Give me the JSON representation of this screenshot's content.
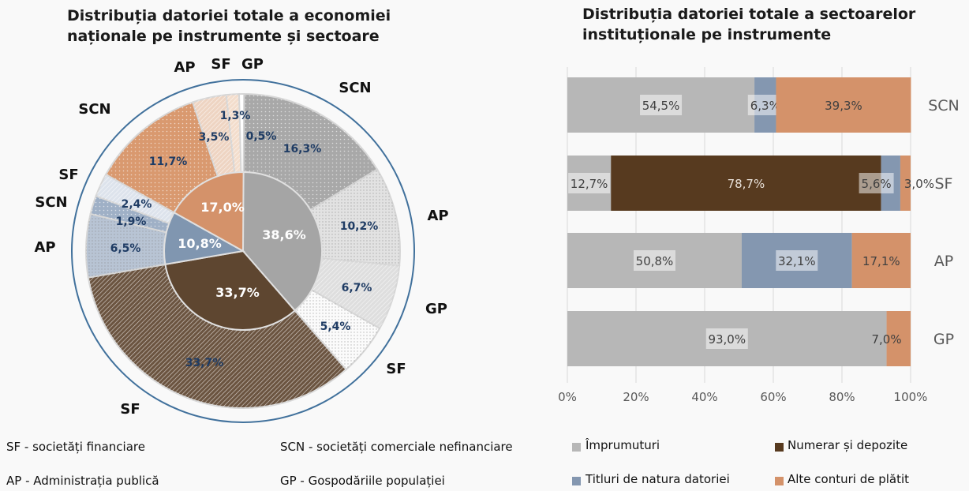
{
  "left_chart": {
    "title_line1": "Distribuția datoriei totale a economiei",
    "title_line2": "naționale  pe instrumente și sectoare"
  },
  "right_chart": {
    "title_line1": "Distribuția datoriei totale a sectoarelor",
    "title_line2": "instituționale pe instrumente"
  },
  "legend_left": [
    "SF - societăți financiare",
    "SCN - societăți comerciale nefinanciare",
    "AP - Administrația publică",
    "GP - Gospodăriile populației"
  ],
  "legend_right": [
    {
      "label": "Împrumuturi",
      "color": "#b7b7b7"
    },
    {
      "label": "Numerar și depozite",
      "color": "#573a1f"
    },
    {
      "label": "Titluri de natura datoriei",
      "color": "#8497b0"
    },
    {
      "label": "Alte conturi de plătit",
      "color": "#d4926a"
    }
  ],
  "chart_data": [
    {
      "type": "pie",
      "title": "Distribuția datoriei totale a economiei naționale  pe instrumente și sectoare",
      "inner": {
        "labels": [
          "Împrumuturi",
          "Numerar și depozite",
          "Titluri de natura datoriei",
          "Alte conturi de plătit"
        ],
        "values": [
          38.6,
          33.7,
          10.8,
          17.0
        ],
        "value_labels": [
          "38,6%",
          "33,7%",
          "10,8%",
          "17,0%"
        ],
        "colors": [
          "#a5a5a5",
          "#5e4630",
          "#8096b0",
          "#d4926a"
        ]
      },
      "outer": {
        "sectors": [
          "SCN",
          "AP",
          "GP",
          "SF",
          "SF",
          "AP",
          "SCN",
          "SF",
          "SCN",
          "AP",
          "SF",
          "GP"
        ],
        "values": [
          16.3,
          10.2,
          6.7,
          5.4,
          33.7,
          6.5,
          1.9,
          2.4,
          11.7,
          3.5,
          1.3,
          0.5
        ],
        "value_labels": [
          "16,3%",
          "10,2%",
          "6,7%",
          "5,4%",
          "33,7%",
          "6,5%",
          "1,9%",
          "2,4%",
          "11,7%",
          "3,5%",
          "1,3%",
          "0,5%"
        ],
        "colors": [
          "#a8a8a8",
          "#e2e2e2",
          "#dedede",
          "#fbfbfb",
          "#6b5440",
          "#b8c4d4",
          "#9fb0c6",
          "#dde3ec",
          "#d9996f",
          "#eed4c2",
          "#f3ddcc",
          "#ffffff"
        ]
      }
    },
    {
      "type": "bar",
      "stacked": true,
      "orientation": "horizontal",
      "title": "Distribuția datoriei totale a sectoarelor instituționale pe instrumente",
      "categories": [
        "SCN",
        "SF",
        "AP",
        "GP"
      ],
      "xlim": [
        0,
        100
      ],
      "xticks": [
        "0%",
        "20%",
        "40%",
        "60%",
        "80%",
        "100%"
      ],
      "series": [
        {
          "name": "Împrumuturi",
          "values": [
            54.5,
            12.7,
            50.8,
            93.0
          ],
          "labels": [
            "54,5%",
            "12,7%",
            "50,8%",
            "93,0%"
          ]
        },
        {
          "name": "Numerar și depozite",
          "values": [
            0,
            78.7,
            0,
            0
          ],
          "labels": [
            "",
            "78,7%",
            "",
            ""
          ]
        },
        {
          "name": "Titluri de natura datoriei",
          "values": [
            6.3,
            5.6,
            32.1,
            0
          ],
          "labels": [
            "6,3%",
            "5,6%",
            "32,1%",
            ""
          ]
        },
        {
          "name": "Alte conturi de plătit",
          "values": [
            39.3,
            3.0,
            17.1,
            7.0
          ],
          "labels": [
            "39,3%",
            "3,0%",
            "17,1%",
            "7,0%"
          ]
        }
      ]
    }
  ]
}
